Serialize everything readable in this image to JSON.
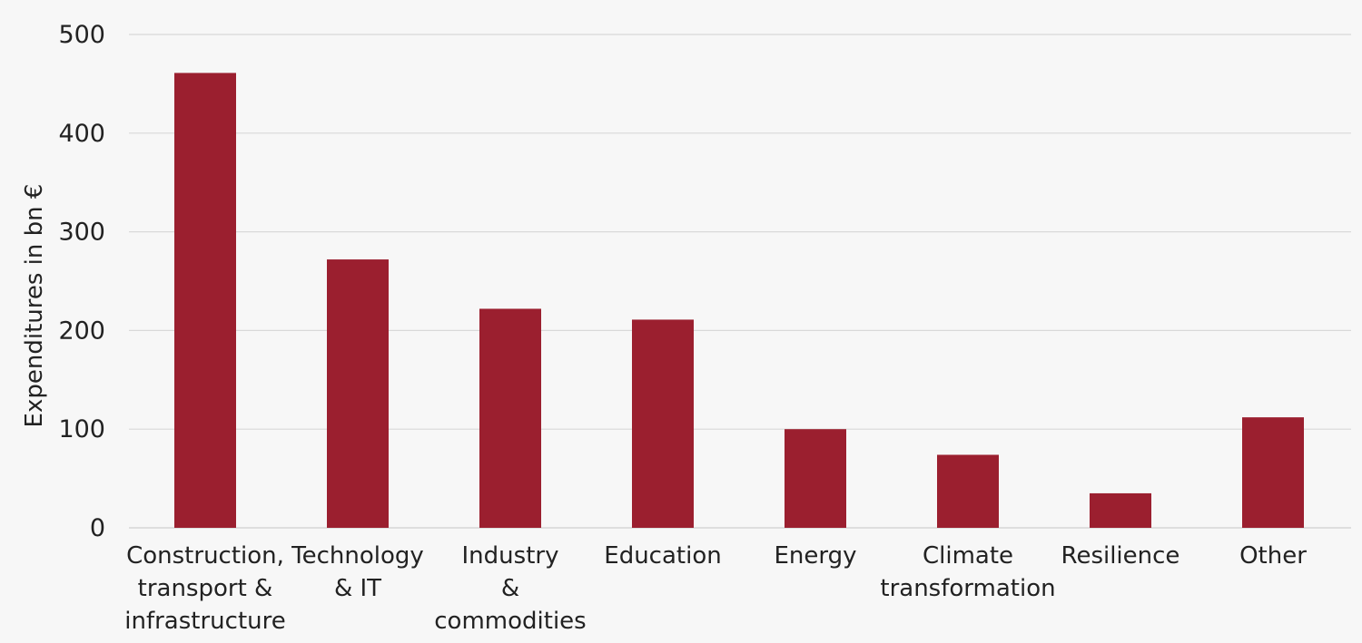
{
  "chart_data": {
    "type": "bar",
    "categories": [
      "Construction, transport & infrastructure",
      "Technology & IT",
      "Industry & commodities",
      "Education",
      "Energy",
      "Climate transformation",
      "Resilience",
      "Other"
    ],
    "category_lines": [
      [
        "Construction,",
        "transport &",
        "infrastructure"
      ],
      [
        "Technology",
        "& IT"
      ],
      [
        "Industry",
        "&",
        "commodities"
      ],
      [
        "Education"
      ],
      [
        "Energy"
      ],
      [
        "Climate",
        "transformation"
      ],
      [
        "Resilience"
      ],
      [
        "Other"
      ]
    ],
    "values": [
      461,
      272,
      222,
      211,
      100,
      74,
      35,
      112
    ],
    "title": "",
    "xlabel": "",
    "ylabel": "Expenditures in bn €",
    "ylim": [
      0,
      500
    ],
    "yticks": [
      0,
      100,
      200,
      300,
      400,
      500
    ],
    "grid": true,
    "legend": "none",
    "bar_color": "#9b1f2f"
  }
}
